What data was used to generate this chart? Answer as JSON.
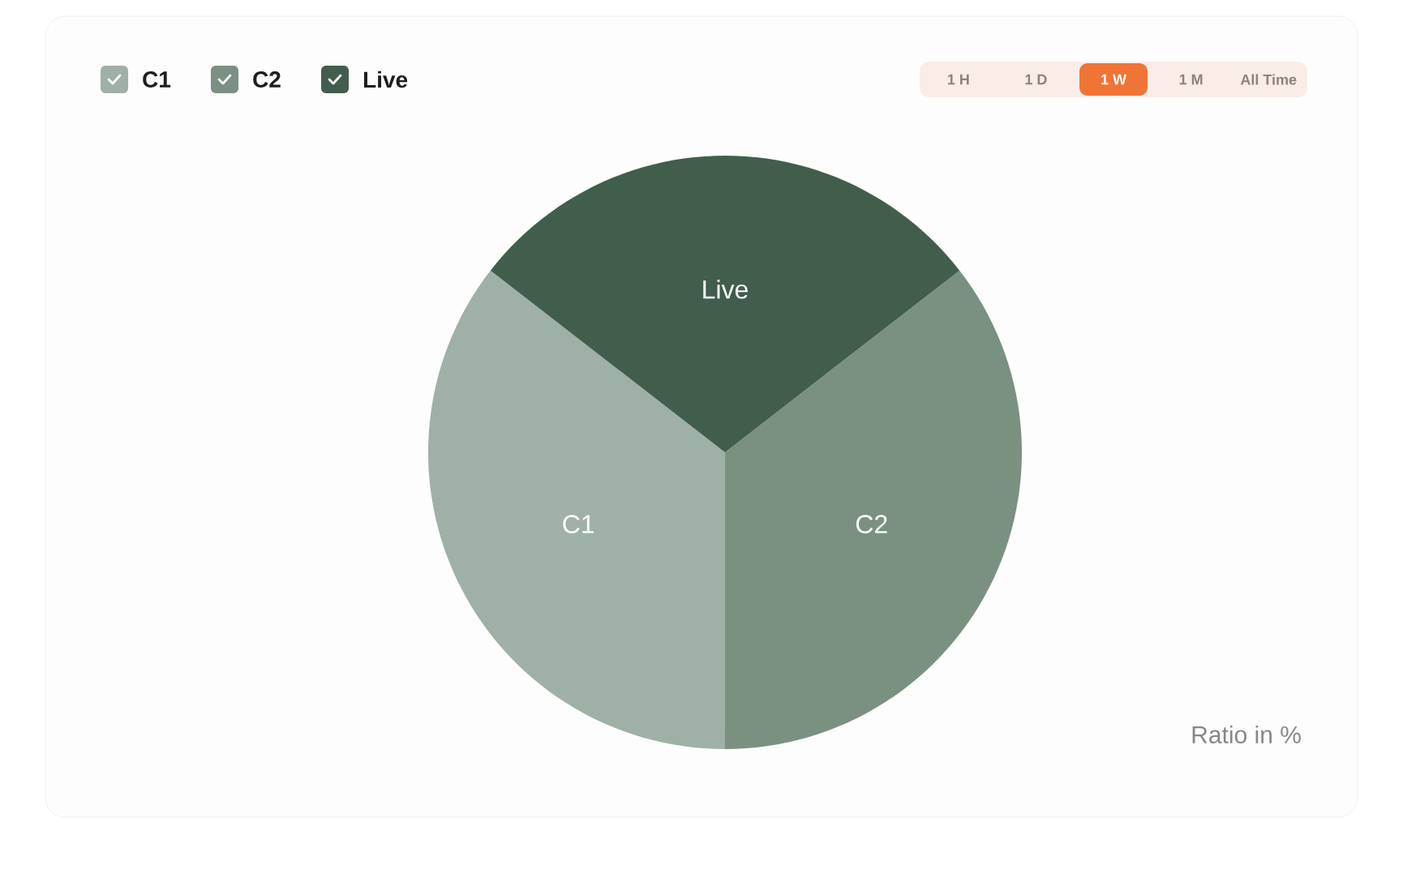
{
  "chart_data": {
    "type": "pie",
    "categories": [
      "C1",
      "C2",
      "Live"
    ],
    "values": [
      35.5,
      35.5,
      29
    ],
    "colors": [
      "#9fb0a7",
      "#7a9181",
      "#415e4c"
    ],
    "data_labels": false,
    "legend": "top left",
    "annotations": [
      "1 H",
      "1 D",
      "1 W",
      "1 M",
      "All Time",
      "Ratio in %"
    ]
  }
}
